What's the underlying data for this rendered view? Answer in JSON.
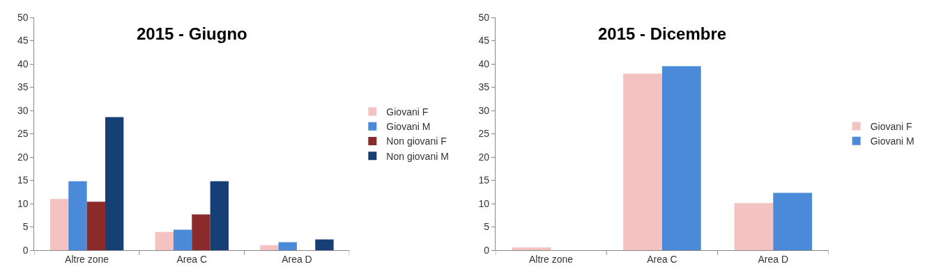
{
  "chart_data": [
    {
      "type": "bar",
      "title": "2015 - Giugno",
      "categories": [
        "Altre zone",
        "Area C",
        "Area D"
      ],
      "series": [
        {
          "name": "Giovani F",
          "color": "#f4c3c1",
          "values": [
            11,
            3.9,
            1.1
          ]
        },
        {
          "name": "Giovani M",
          "color": "#4a8ad8",
          "values": [
            14.8,
            4.4,
            1.7
          ]
        },
        {
          "name": "Non giovani F",
          "color": "#8b2a2a",
          "values": [
            10.4,
            7.7,
            null
          ]
        },
        {
          "name": "Non giovani M",
          "color": "#163f76",
          "values": [
            28.6,
            14.8,
            2.3
          ]
        }
      ],
      "ylim": [
        0,
        50
      ],
      "yticks": [
        0,
        5,
        10,
        15,
        20,
        25,
        30,
        35,
        40,
        45,
        50
      ],
      "grid": false,
      "legend": "right"
    },
    {
      "type": "bar",
      "title": "2015 - Dicembre",
      "categories": [
        "Altre zone",
        "Area C",
        "Area D"
      ],
      "series": [
        {
          "name": "Giovani F",
          "color": "#f4c3c1",
          "values": [
            0.6,
            37.9,
            10.1
          ]
        },
        {
          "name": "Giovani M",
          "color": "#4a8ad8",
          "values": [
            null,
            39.5,
            12.3
          ]
        }
      ],
      "ylim": [
        0,
        50
      ],
      "yticks": [
        0,
        5,
        10,
        15,
        20,
        25,
        30,
        35,
        40,
        45,
        50
      ],
      "grid": false,
      "legend": "right"
    }
  ]
}
